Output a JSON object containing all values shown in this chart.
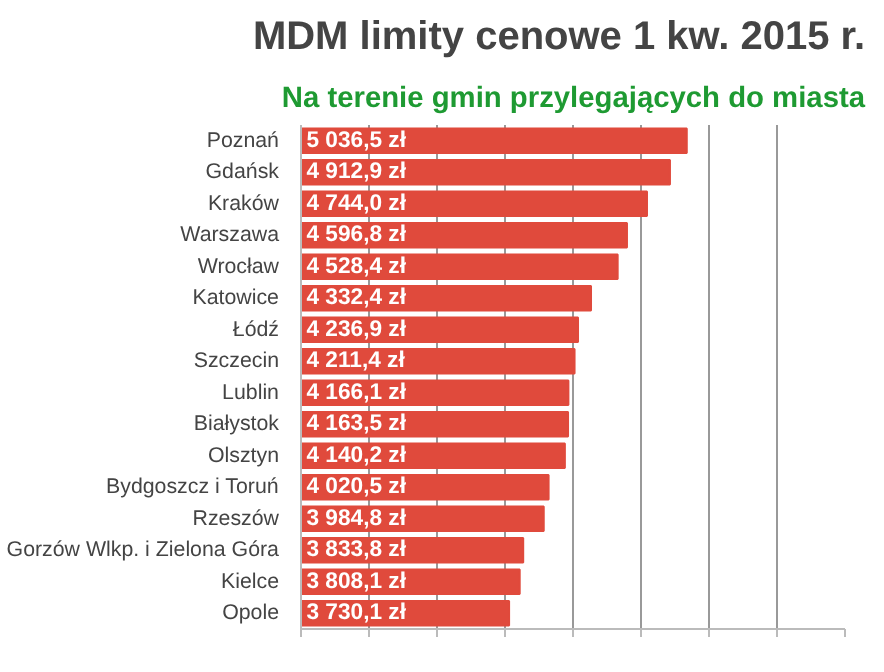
{
  "chart_data": {
    "type": "bar",
    "orientation": "horizontal",
    "title": "MDM limity cenowe 1 kw. 2015 r.",
    "subtitle": "Na terenie gmin przylegających do miasta",
    "categories": [
      "Poznań",
      "Gdańsk",
      "Kraków",
      "Warszawa",
      "Wrocław",
      "Katowice",
      "Łódź",
      "Szczecin",
      "Lublin",
      "Białystok",
      "Olsztyn",
      "Bydgoszcz i Toruń",
      "Rzeszów",
      "Gorzów Wlkp. i Zielona Góra",
      "Kielce",
      "Opole"
    ],
    "values": [
      5036.5,
      4912.9,
      4744.0,
      4596.8,
      4528.4,
      4332.4,
      4236.9,
      4211.4,
      4166.1,
      4163.5,
      4140.2,
      4020.5,
      3984.8,
      3833.8,
      3808.1,
      3730.1
    ],
    "value_labels": [
      "5 036,5 zł",
      "4 912,9 zł",
      "4 744,0 zł",
      "4 596,8 zł",
      "4 528,4 zł",
      "4 332,4 zł",
      "4 236,9 zł",
      "4 211,4 zł",
      "4 166,1 zł",
      "4 163,5 zł",
      "4 140,2 zł",
      "4 020,5 zł",
      "3 984,8 zł",
      "3 833,8 zł",
      "3 808,1 zł",
      "3 730,1 zł"
    ],
    "color": "#e04a3c",
    "xlim": [
      2200,
      6200
    ],
    "xticks": [
      {
        "value": 2200,
        "label": null
      },
      {
        "value": 2700,
        "label": null
      },
      {
        "value": 3200,
        "label": null
      },
      {
        "value": 3700,
        "label": null
      },
      {
        "value": 4200,
        "label": null
      },
      {
        "value": 4700,
        "label": null
      },
      {
        "value": 5200,
        "label": null
      },
      {
        "value": 5700,
        "label": null
      },
      {
        "value": 6200,
        "label": null
      }
    ],
    "grid": "x",
    "tick_labels": "y"
  }
}
